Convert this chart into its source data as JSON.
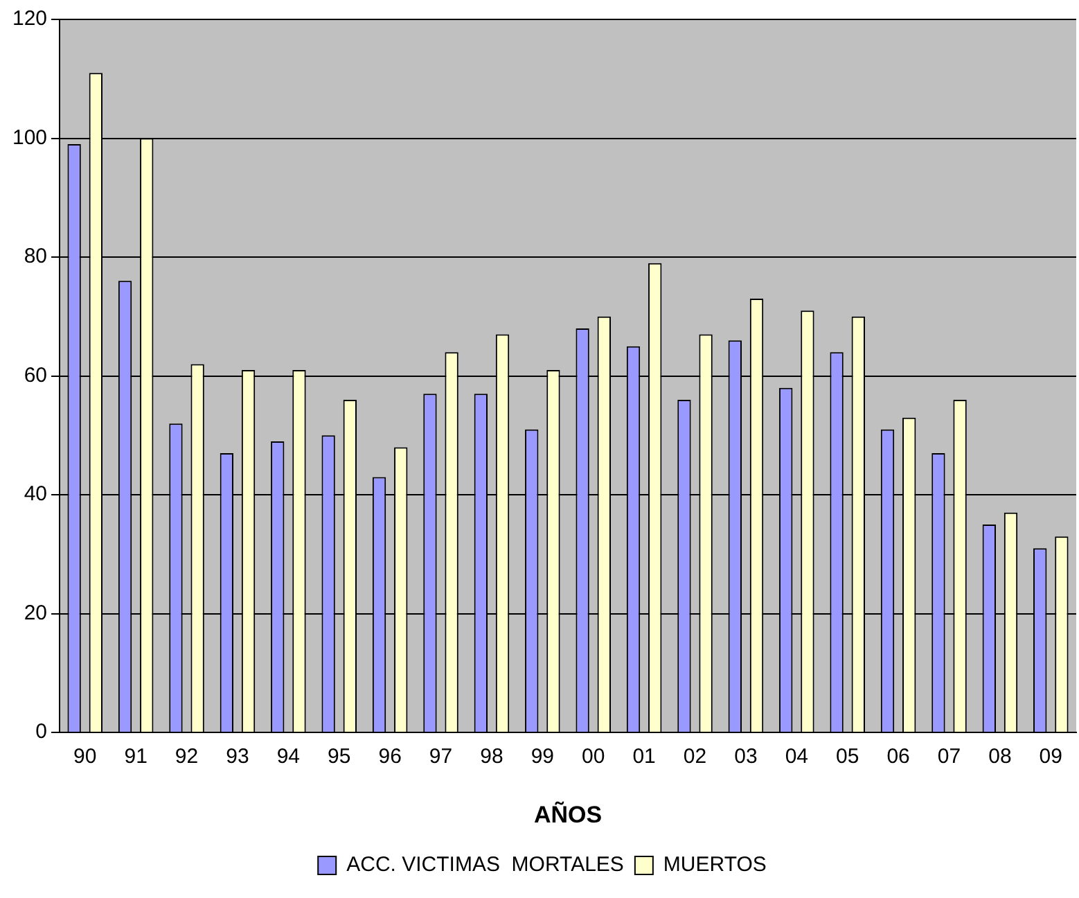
{
  "chart_data": {
    "type": "bar",
    "xlabel": "AÑOS",
    "categories": [
      "90",
      "91",
      "92",
      "93",
      "94",
      "95",
      "96",
      "97",
      "98",
      "99",
      "00",
      "01",
      "02",
      "03",
      "04",
      "05",
      "06",
      "07",
      "08",
      "09"
    ],
    "series": [
      {
        "name": "ACC. VICTIMAS  MORTALES",
        "color": "#9999ff",
        "values": [
          99,
          76,
          52,
          47,
          49,
          50,
          43,
          57,
          57,
          51,
          68,
          65,
          56,
          66,
          58,
          64,
          51,
          47,
          35,
          31
        ]
      },
      {
        "name": "MUERTOS",
        "color": "#ffffcc",
        "values": [
          111,
          100,
          62,
          61,
          61,
          56,
          48,
          64,
          67,
          61,
          70,
          79,
          67,
          73,
          71,
          70,
          53,
          56,
          37,
          33
        ]
      }
    ],
    "ylim": [
      0,
      120
    ],
    "yticks": [
      0,
      20,
      40,
      60,
      80,
      100,
      120
    ],
    "grid": "y",
    "legend": "bottom"
  }
}
